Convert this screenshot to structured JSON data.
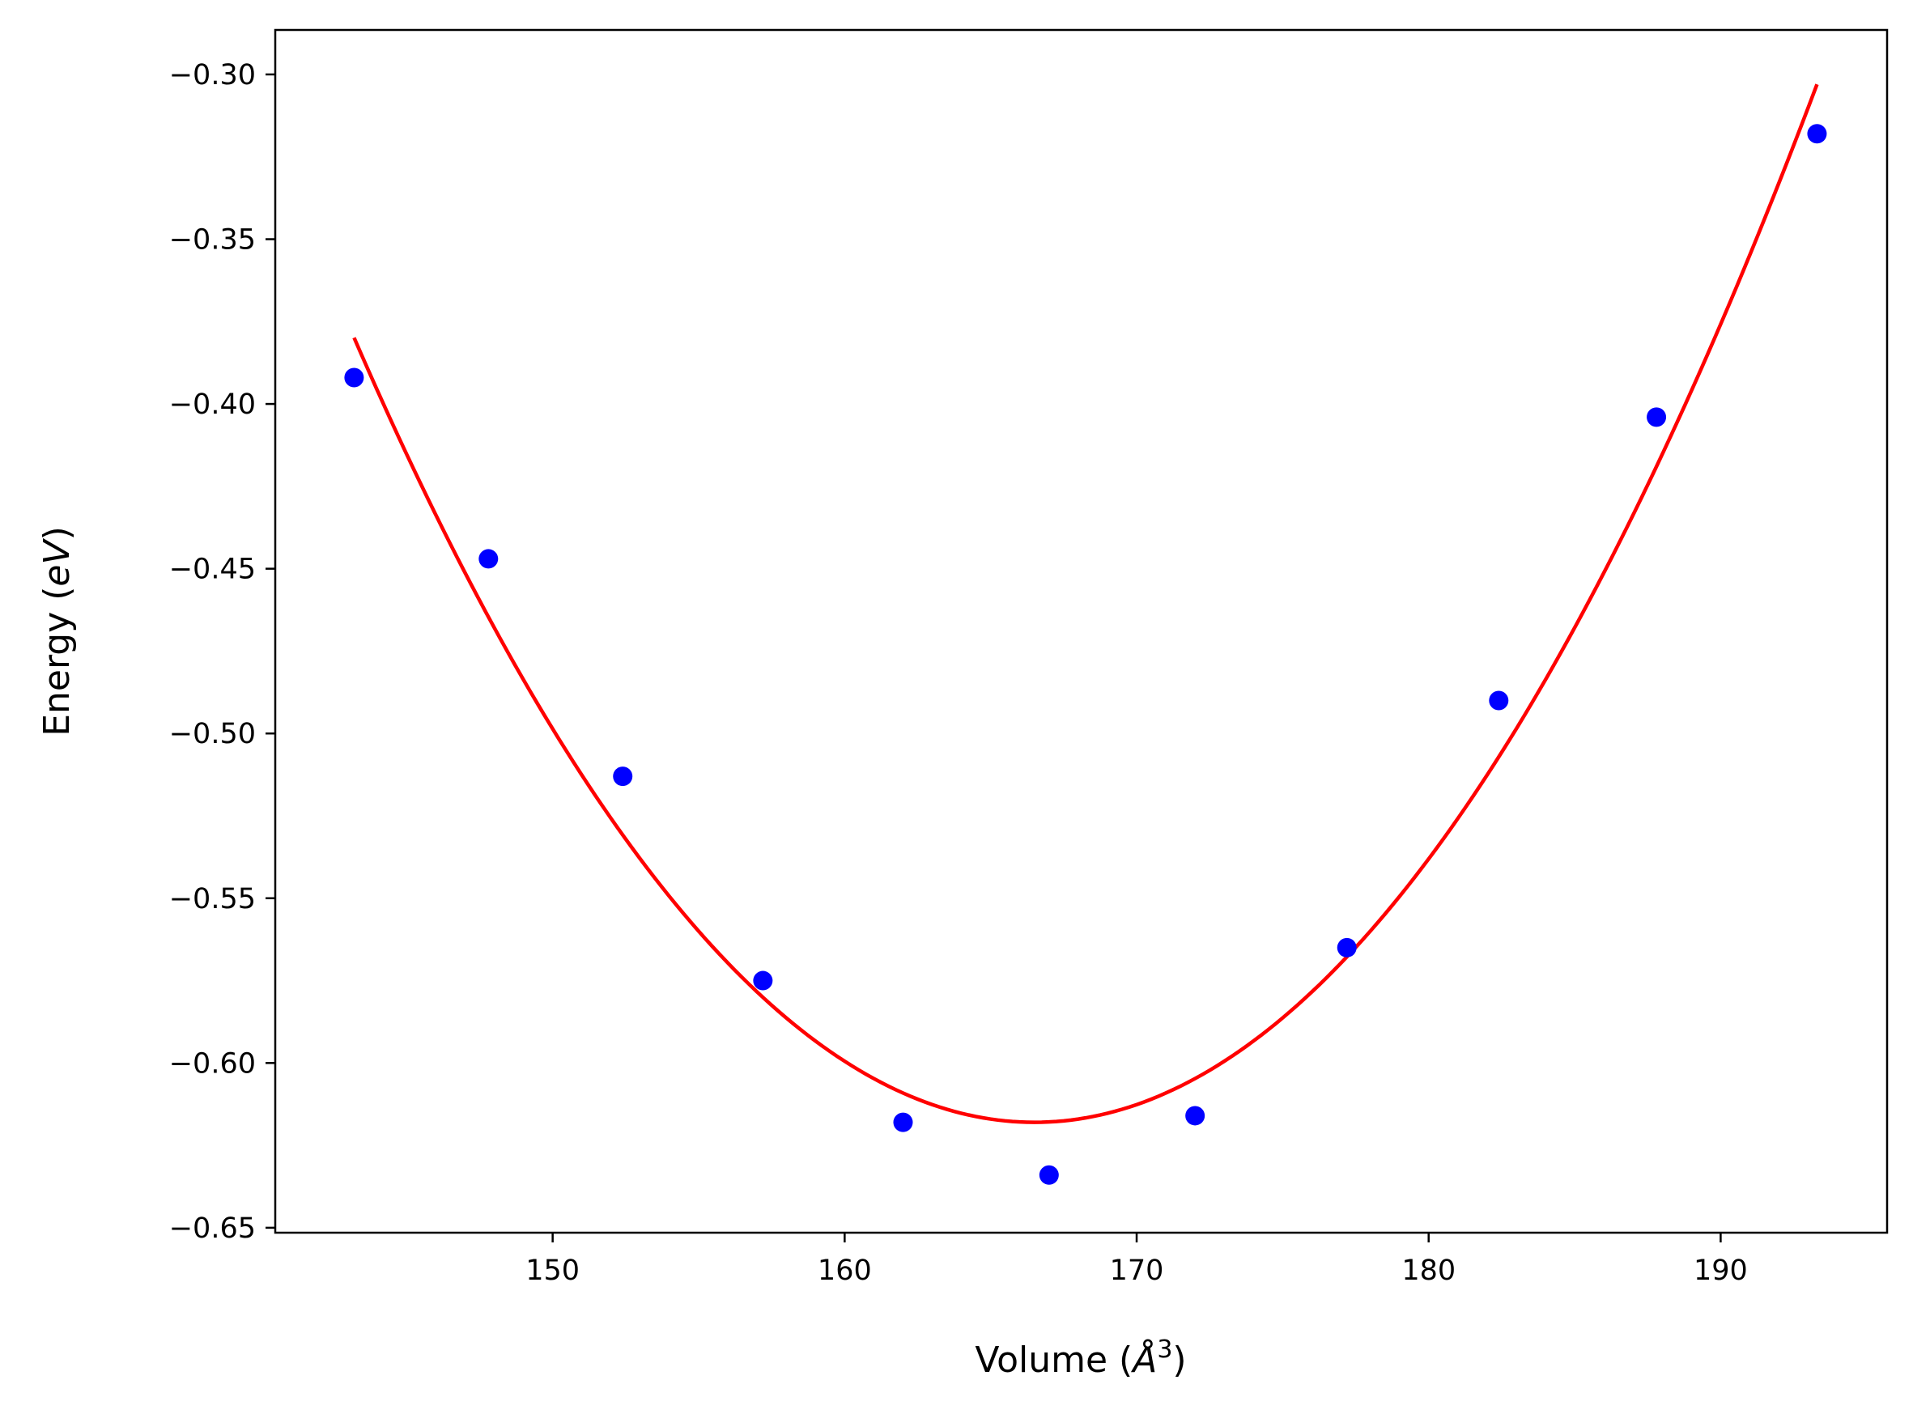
{
  "chart_data": {
    "type": "scatter",
    "title": "",
    "xlabel": "Volume",
    "xlabel_unit_symbol": "Å",
    "xlabel_unit_exponent": "3",
    "ylabel": "Energy",
    "ylabel_unit": "eV",
    "xlim": [
      140.5,
      195.7
    ],
    "ylim": [
      -0.6515,
      -0.2865
    ],
    "xticks": [
      150,
      160,
      170,
      180,
      190
    ],
    "xtick_labels": [
      "150",
      "160",
      "170",
      "180",
      "190"
    ],
    "yticks": [
      -0.3,
      -0.35,
      -0.4,
      -0.45,
      -0.5,
      -0.55,
      -0.6,
      -0.65
    ],
    "ytick_labels": [
      "−0.30",
      "−0.35",
      "−0.40",
      "−0.45",
      "−0.50",
      "−0.55",
      "−0.60",
      "−0.65"
    ],
    "grid": false,
    "series": [
      {
        "kind": "scatter",
        "color": "#0000ff",
        "x": [
          143.2,
          147.8,
          152.4,
          157.2,
          162.0,
          167.0,
          172.0,
          177.2,
          182.4,
          187.8,
          193.3
        ],
        "y": [
          -0.392,
          -0.447,
          -0.513,
          -0.575,
          -0.618,
          -0.634,
          -0.616,
          -0.565,
          -0.49,
          -0.404,
          -0.318
        ]
      },
      {
        "kind": "line",
        "color": "#ff0000",
        "fit": "quadratic",
        "x_range": [
          143.2,
          193.3
        ],
        "vertex_x": 166.5,
        "vertex_y": -0.618,
        "end_y": -0.303
      }
    ]
  }
}
